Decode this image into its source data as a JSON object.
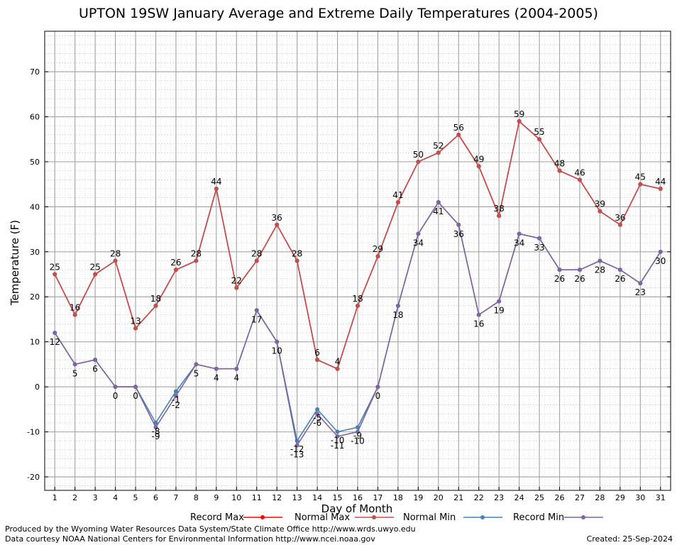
{
  "page": {
    "title": "UPTON 19SW January Average and Extreme Daily Temperatures (2004-2005)",
    "credit_line1": "Produced by the Wyoming Water Resources Data System/State Climate Office http://www.wrds.uwyo.edu",
    "credit_line2": "Data courtesy NOAA National Centers for Environmental Information http://www.ncei.noaa.gov",
    "created": "Created:  25-Sep-2024"
  },
  "chart_data": {
    "type": "line",
    "title": "UPTON 19SW January Average and Extreme Daily Temperatures (2004-2005)",
    "xlabel": "Day of Month",
    "ylabel": "Temperature (F)",
    "x": [
      1,
      2,
      3,
      4,
      5,
      6,
      7,
      8,
      9,
      10,
      11,
      12,
      13,
      14,
      15,
      16,
      17,
      18,
      19,
      20,
      21,
      22,
      23,
      24,
      25,
      26,
      27,
      28,
      29,
      30,
      31
    ],
    "xlim": [
      0.5,
      31.5
    ],
    "ylim": [
      -23,
      79
    ],
    "yticks": [
      -20,
      -10,
      0,
      10,
      20,
      30,
      40,
      50,
      60,
      70
    ],
    "grid": true,
    "legend_position": "bottom",
    "series": [
      {
        "name": "Record Max",
        "color": "#ff0000",
        "values": [
          25,
          16,
          25,
          28,
          13,
          18,
          26,
          28,
          44,
          22,
          28,
          36,
          28,
          6,
          4,
          18,
          29,
          41,
          50,
          52,
          56,
          49,
          38,
          59,
          55,
          48,
          46,
          39,
          36,
          45,
          44
        ]
      },
      {
        "name": "Normal Max",
        "color": "#c0504d",
        "values": [
          25,
          16,
          25,
          28,
          13,
          18,
          26,
          28,
          44,
          22,
          28,
          36,
          28,
          6,
          4,
          18,
          29,
          41,
          50,
          52,
          56,
          49,
          38,
          59,
          55,
          48,
          46,
          39,
          36,
          45,
          44
        ]
      },
      {
        "name": "Normal Min",
        "color": "#4682b4",
        "values": [
          12,
          5,
          6,
          0,
          0,
          -8,
          -1,
          5,
          4,
          4,
          17,
          10,
          -12,
          -5,
          -10,
          -9,
          0,
          18,
          34,
          41,
          36,
          16,
          19,
          34,
          33,
          26,
          26,
          28,
          26,
          23,
          30
        ]
      },
      {
        "name": "Record Min",
        "color": "#8064a2",
        "values": [
          12,
          5,
          6,
          0,
          0,
          -9,
          -2,
          5,
          4,
          4,
          17,
          10,
          -13,
          -6,
          -11,
          -10,
          0,
          18,
          34,
          41,
          36,
          16,
          19,
          34,
          33,
          26,
          26,
          28,
          26,
          23,
          30
        ]
      }
    ],
    "max_labels": [
      "25",
      "16",
      "25",
      "28",
      "13",
      "18",
      "26",
      "28",
      "44",
      "22",
      "28",
      "36",
      "28",
      "6",
      "4",
      "18",
      "29",
      "41",
      "50",
      "52",
      "56",
      "49",
      "38",
      "59",
      "55",
      "48",
      "46",
      "39",
      "36",
      "45",
      "44"
    ],
    "min_labels": [
      "12",
      "5",
      "6",
      "0",
      "0",
      "-9",
      "-2",
      "5",
      "4",
      "4",
      "17",
      "10",
      "-13",
      "-6",
      "-11",
      "-10",
      "0",
      "18",
      "34",
      "41",
      "36",
      "16",
      "19",
      "34",
      "33",
      "26",
      "26",
      "28",
      "26",
      "23",
      "30"
    ],
    "normal_min_labels": [
      {
        "day": 6,
        "text": "-8"
      },
      {
        "day": 7,
        "text": "-1"
      },
      {
        "day": 13,
        "text": "-12"
      },
      {
        "day": 14,
        "text": "-5"
      },
      {
        "day": 15,
        "text": "-10"
      },
      {
        "day": 16,
        "text": "-9"
      }
    ]
  }
}
